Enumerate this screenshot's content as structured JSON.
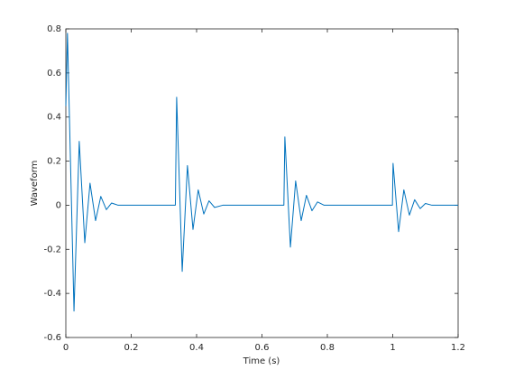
{
  "chart_data": {
    "type": "line",
    "xlabel": "Time (s)",
    "ylabel": "Waveform",
    "x": [
      0,
      0.005,
      0.025,
      0.041,
      0.058,
      0.074,
      0.091,
      0.107,
      0.124,
      0.14,
      0.16,
      0.335,
      0.339,
      0.356,
      0.372,
      0.389,
      0.405,
      0.422,
      0.438,
      0.455,
      0.48,
      0.667,
      0.67,
      0.687,
      0.703,
      0.72,
      0.736,
      0.753,
      0.77,
      0.79,
      0.999,
      1.001,
      1.018,
      1.034,
      1.051,
      1.067,
      1.084,
      1.1,
      1.12,
      1.2
    ],
    "series": [
      {
        "color": "#0072bd",
        "values": [
          0.45,
          0.78,
          -0.48,
          0.29,
          -0.17,
          0.1,
          -0.07,
          0.04,
          -0.02,
          0.01,
          0,
          0,
          0.49,
          -0.3,
          0.18,
          -0.11,
          0.07,
          -0.04,
          0.02,
          -0.01,
          0,
          0,
          0.31,
          -0.19,
          0.11,
          -0.07,
          0.045,
          -0.025,
          0.015,
          0,
          0,
          0.19,
          -0.12,
          0.07,
          -0.045,
          0.025,
          -0.015,
          0.008,
          0,
          0
        ]
      }
    ],
    "xlim": [
      0,
      1.2
    ],
    "xticks": [
      0,
      0.2,
      0.4,
      0.6,
      0.8,
      1,
      1.2
    ],
    "ylim": [
      -0.6,
      0.8
    ],
    "yticks": [
      -0.6,
      -0.4,
      -0.2,
      0,
      0.2,
      0.4,
      0.6,
      0.8
    ]
  }
}
